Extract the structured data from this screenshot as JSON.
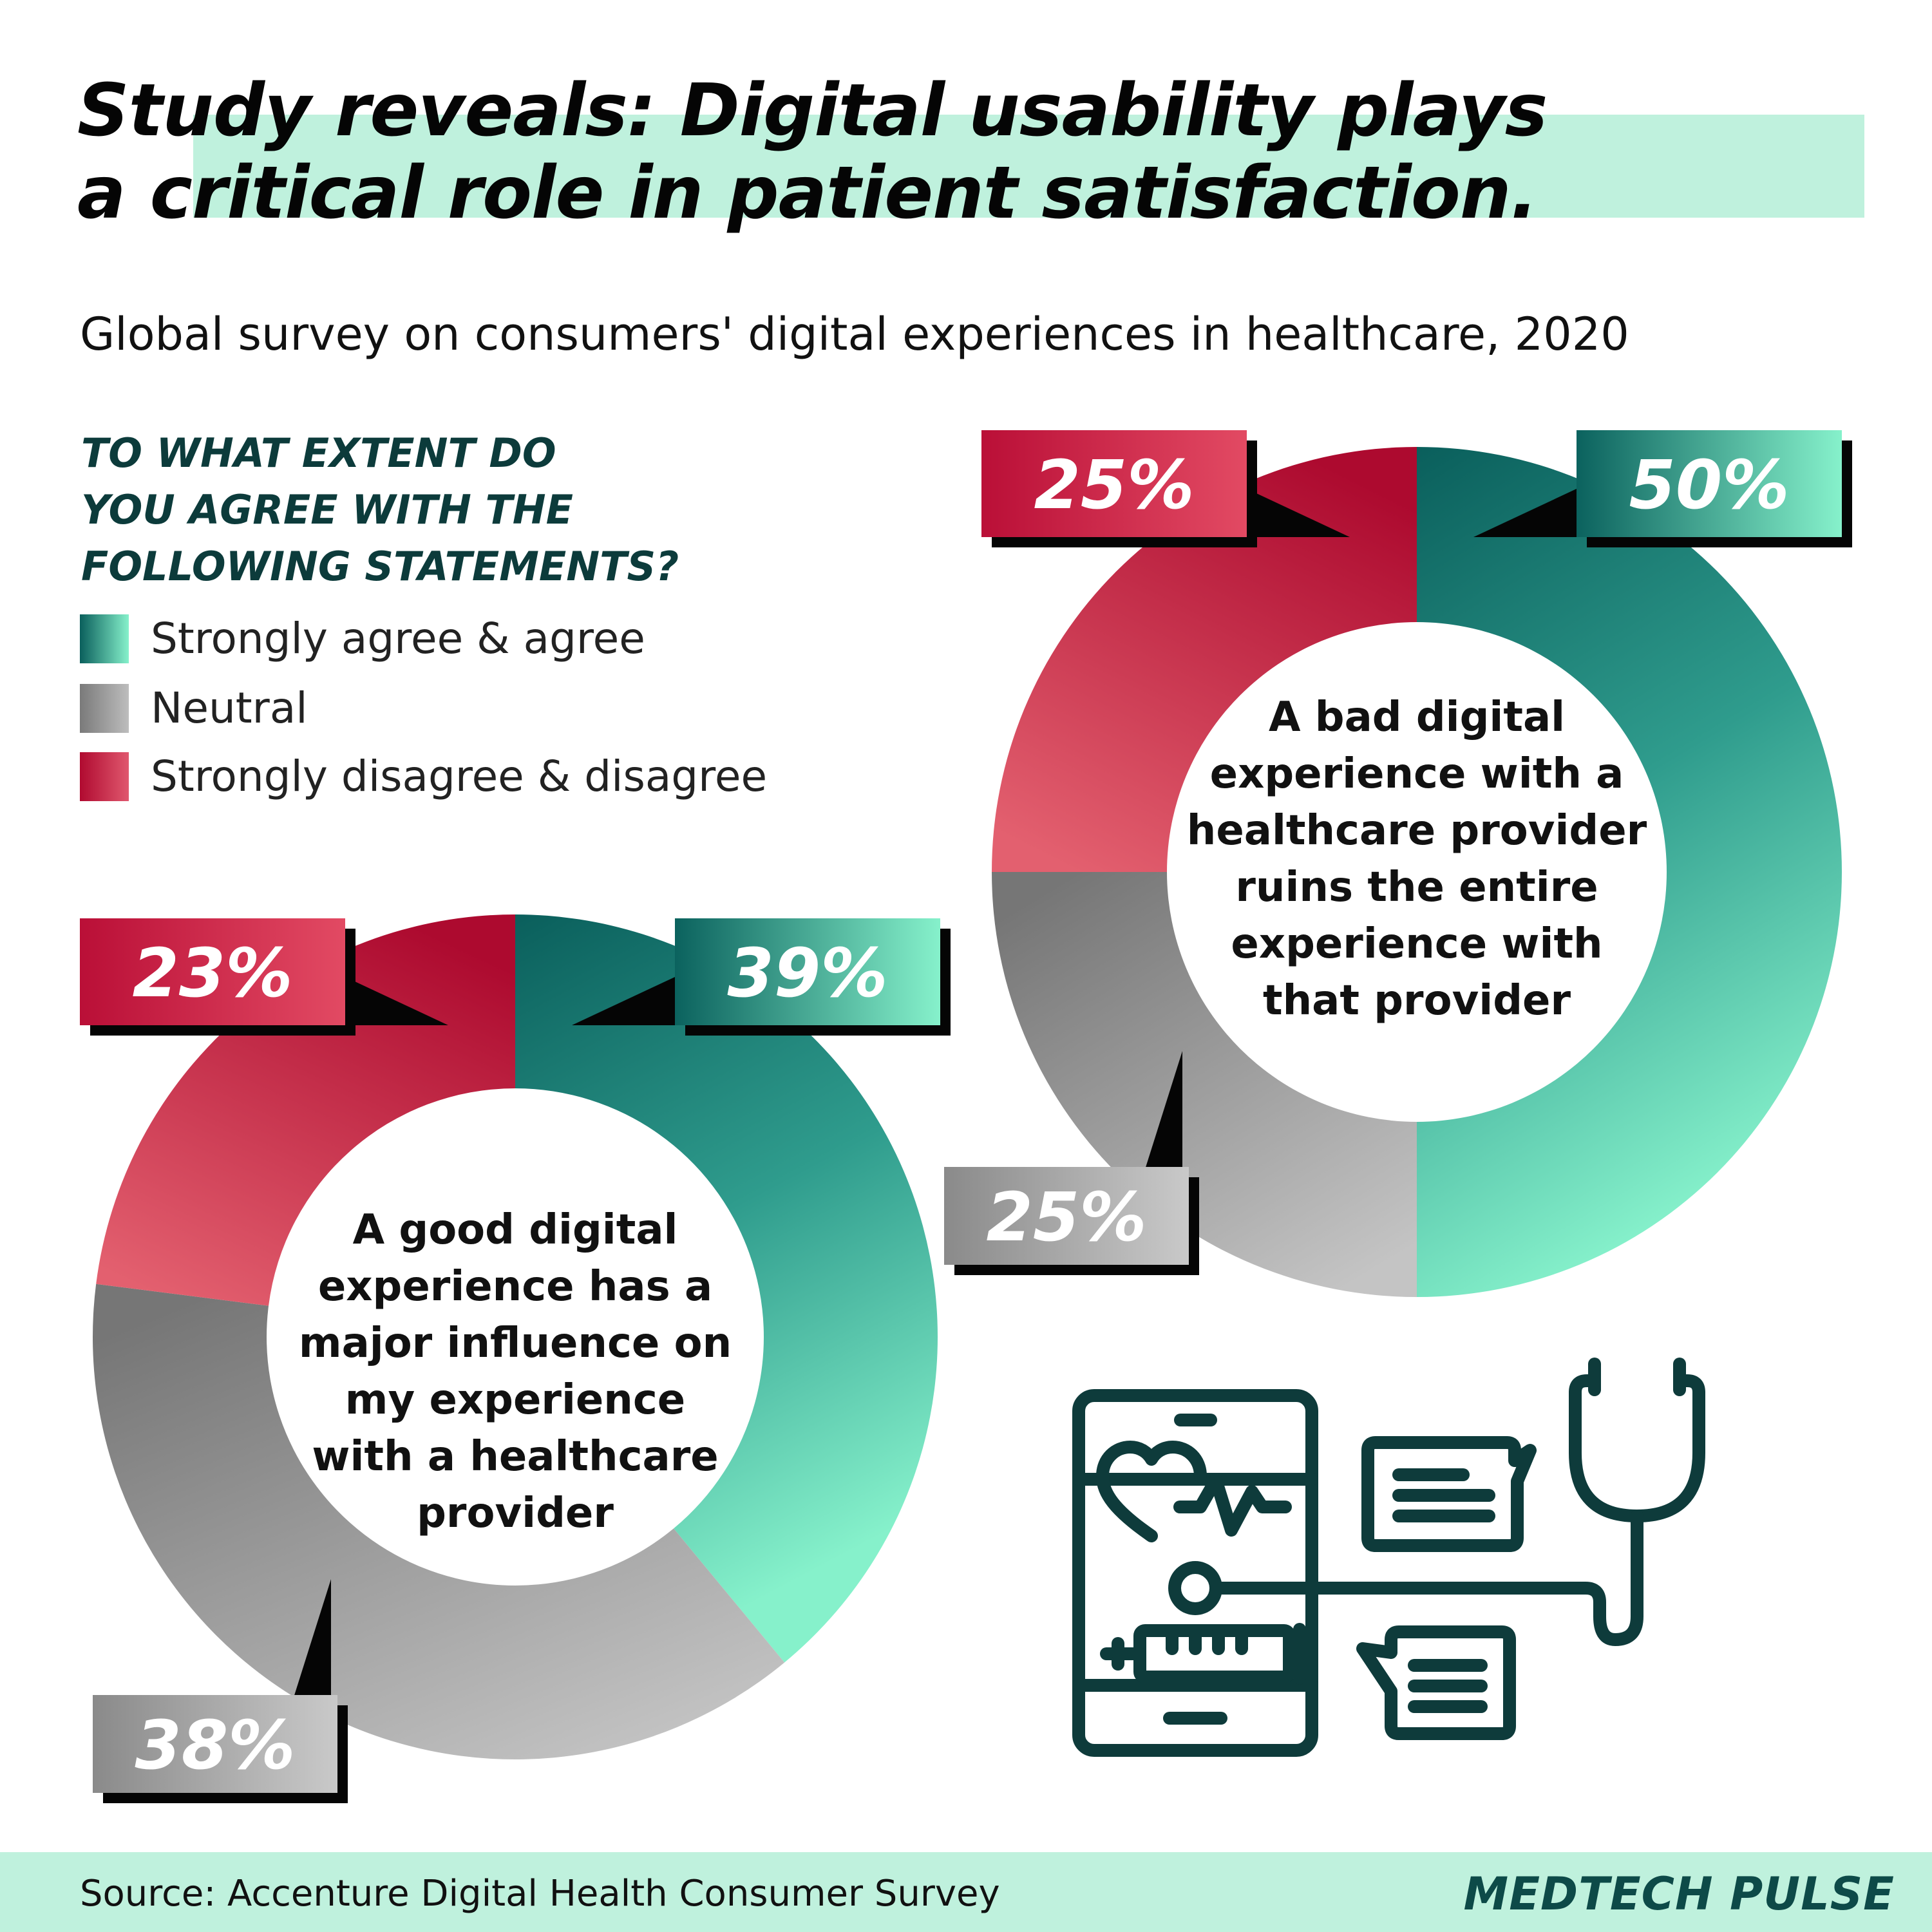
{
  "header": {
    "title_line1": "Study reveals: Digital usability plays",
    "title_line2": "a critical role in patient satisfaction.",
    "subtitle": "Global survey on consumers' digital experiences in healthcare, 2020"
  },
  "question": {
    "line1": "TO WHAT EXTENT DO",
    "line2": "YOU AGREE WITH THE",
    "line3": "FOLLOWING STATEMENTS?"
  },
  "legend": [
    {
      "label": "Strongly agree & agree",
      "color": "#0d6b65"
    },
    {
      "label": "Neutral",
      "color": "#8c8c8c"
    },
    {
      "label": "Strongly disagree & disagree",
      "color": "#c8173b"
    }
  ],
  "colors": {
    "agree_dark": "#0a5f5c",
    "agree_light": "#86f1cb",
    "neutral_dark": "#7a7a7a",
    "neutral_light": "#bdbdbd",
    "disagree_dark": "#b00a30",
    "disagree_light": "#e0586e",
    "highlight": "#bff1dd"
  },
  "chart_data": [
    {
      "type": "pie",
      "subtype": "donut",
      "center_label": [
        "A bad digital",
        "experience with a",
        "healthcare provider",
        "ruins the entire",
        "experience with",
        "that provider"
      ],
      "categories": [
        "Strongly agree & agree",
        "Neutral",
        "Strongly disagree & disagree"
      ],
      "values": [
        50,
        25,
        25
      ],
      "labels": [
        "50%",
        "25%",
        "25%"
      ]
    },
    {
      "type": "pie",
      "subtype": "donut",
      "center_label": [
        "A good digital",
        "experience has a",
        "major influence on",
        "my experience",
        "with a healthcare",
        "provider"
      ],
      "categories": [
        "Strongly agree & agree",
        "Neutral",
        "Strongly disagree & disagree"
      ],
      "values": [
        39,
        38,
        23
      ],
      "labels": [
        "39%",
        "38%",
        "23%"
      ]
    }
  ],
  "icons": [
    "smartphone-icon",
    "heart-pulse-icon",
    "syringe-icon",
    "chat-bubble-icon",
    "stethoscope-icon"
  ],
  "footer": {
    "source": "Source: Accenture Digital Health Consumer Survey",
    "brand": "MEDTECH PULSE"
  }
}
